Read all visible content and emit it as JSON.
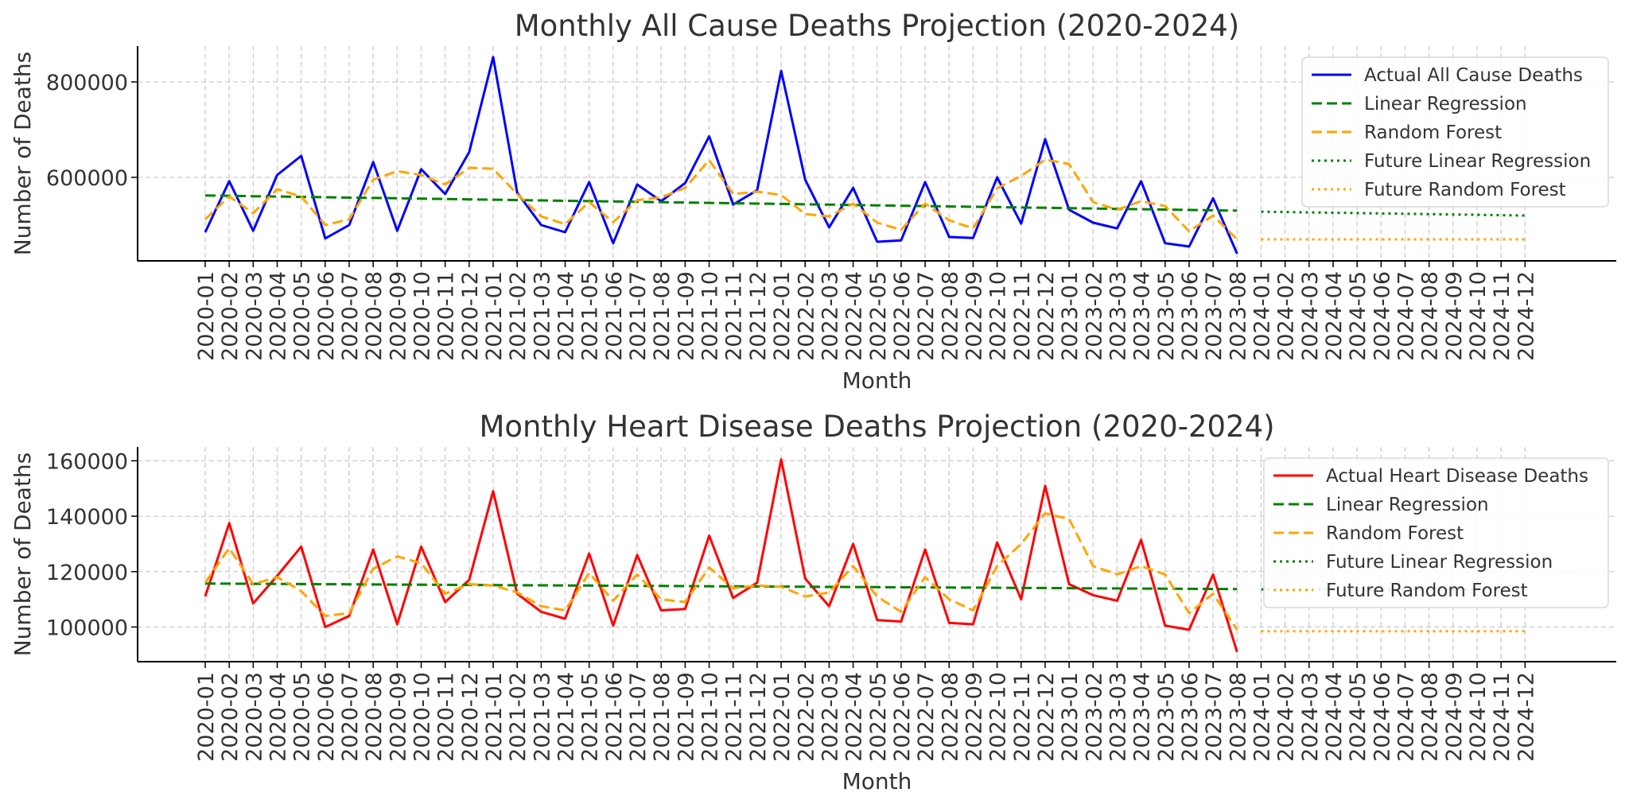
{
  "chart_data": [
    {
      "type": "line",
      "title": "Monthly All Cause Deaths Projection (2020-2024)",
      "xlabel": "Month",
      "ylabel": "Number of Deaths",
      "ylim": [
        425000,
        875000
      ],
      "yticks": [
        600000,
        800000
      ],
      "grid": true,
      "legend_position": "top-right",
      "x": [
        "2020-01",
        "2020-02",
        "2020-03",
        "2020-04",
        "2020-05",
        "2020-06",
        "2020-07",
        "2020-08",
        "2020-09",
        "2020-10",
        "2020-11",
        "2020-12",
        "2021-01",
        "2021-02",
        "2021-03",
        "2021-04",
        "2021-05",
        "2021-06",
        "2021-07",
        "2021-08",
        "2021-09",
        "2021-10",
        "2021-11",
        "2021-12",
        "2022-01",
        "2022-02",
        "2022-03",
        "2022-04",
        "2022-05",
        "2022-06",
        "2022-07",
        "2022-08",
        "2022-09",
        "2022-10",
        "2022-11",
        "2022-12",
        "2023-01",
        "2023-02",
        "2023-03",
        "2023-04",
        "2023-05",
        "2023-06",
        "2023-07",
        "2023-08",
        "2024-01",
        "2024-02",
        "2024-03",
        "2024-04",
        "2024-05",
        "2024-06",
        "2024-07",
        "2024-08",
        "2024-09",
        "2024-10",
        "2024-11",
        "2024-12"
      ],
      "series": [
        {
          "name": "Actual All Cause Deaths",
          "color": "#0000ff",
          "style": "solid",
          "values": [
            485000,
            592000,
            488000,
            605000,
            645000,
            472000,
            500000,
            632000,
            488000,
            617000,
            565000,
            653000,
            852000,
            568000,
            500000,
            485000,
            590000,
            462000,
            585000,
            550000,
            588000,
            686000,
            543000,
            573000,
            823000,
            595000,
            495000,
            578000,
            465000,
            468000,
            590000,
            475000,
            473000,
            600000,
            503000,
            680000,
            532000,
            505000,
            493000,
            592000,
            462000,
            455000,
            556000,
            440000,
            null,
            null,
            null,
            null,
            null,
            null,
            null,
            null,
            null,
            null,
            null,
            null
          ]
        },
        {
          "name": "Linear Regression",
          "color": "#008000",
          "style": "dashed",
          "values": [
            562000,
            561261,
            560521,
            559782,
            559043,
            558303,
            557564,
            556825,
            556085,
            555346,
            554607,
            553867,
            553128,
            552389,
            551649,
            550910,
            550171,
            549431,
            548692,
            547953,
            547213,
            546474,
            545735,
            544995,
            544256,
            543517,
            542777,
            542038,
            541299,
            540560,
            539820,
            539081,
            538342,
            537602,
            536863,
            536124,
            535384,
            534645,
            533906,
            533166,
            532427,
            531688,
            530948,
            530209,
            null,
            null,
            null,
            null,
            null,
            null,
            null,
            null,
            null,
            null,
            null,
            null
          ]
        },
        {
          "name": "Random Forest",
          "color": "#ffa500",
          "style": "dashed",
          "values": [
            512000,
            560000,
            525000,
            575000,
            560000,
            500000,
            512000,
            595000,
            613000,
            605000,
            585000,
            620000,
            618000,
            565000,
            518000,
            502000,
            548000,
            506000,
            552000,
            558000,
            578000,
            636000,
            565000,
            570000,
            563000,
            523000,
            518000,
            545000,
            505000,
            490000,
            545000,
            510000,
            493000,
            577000,
            603000,
            637000,
            628000,
            548000,
            532000,
            550000,
            540000,
            487000,
            520000,
            470000,
            null,
            null,
            null,
            null,
            null,
            null,
            null,
            null,
            null,
            null,
            null,
            null
          ]
        },
        {
          "name": "Future Linear Regression",
          "color": "#008000",
          "style": "dotted",
          "values": [
            null,
            null,
            null,
            null,
            null,
            null,
            null,
            null,
            null,
            null,
            null,
            null,
            null,
            null,
            null,
            null,
            null,
            null,
            null,
            null,
            null,
            null,
            null,
            null,
            null,
            null,
            null,
            null,
            null,
            null,
            null,
            null,
            null,
            null,
            null,
            null,
            null,
            null,
            null,
            null,
            null,
            null,
            null,
            null,
            528000,
            527273,
            526545,
            525818,
            525091,
            524364,
            523636,
            522909,
            522182,
            521455,
            520727,
            520000
          ]
        },
        {
          "name": "Future Random Forest",
          "color": "#ffa500",
          "style": "dotted",
          "values": [
            null,
            null,
            null,
            null,
            null,
            null,
            null,
            null,
            null,
            null,
            null,
            null,
            null,
            null,
            null,
            null,
            null,
            null,
            null,
            null,
            null,
            null,
            null,
            null,
            null,
            null,
            null,
            null,
            null,
            null,
            null,
            null,
            null,
            null,
            null,
            null,
            null,
            null,
            null,
            null,
            null,
            null,
            null,
            null,
            470000,
            470000,
            470000,
            470000,
            470000,
            470000,
            470000,
            470000,
            470000,
            470000,
            470000,
            470000
          ]
        }
      ]
    },
    {
      "type": "line",
      "title": "Monthly Heart Disease Deaths Projection (2020-2024)",
      "xlabel": "Month",
      "ylabel": "Number of Deaths",
      "ylim": [
        87500,
        165000
      ],
      "yticks": [
        100000,
        120000,
        140000,
        160000
      ],
      "grid": true,
      "legend_position": "top-right",
      "x": [
        "2020-01",
        "2020-02",
        "2020-03",
        "2020-04",
        "2020-05",
        "2020-06",
        "2020-07",
        "2020-08",
        "2020-09",
        "2020-10",
        "2020-11",
        "2020-12",
        "2021-01",
        "2021-02",
        "2021-03",
        "2021-04",
        "2021-05",
        "2021-06",
        "2021-07",
        "2021-08",
        "2021-09",
        "2021-10",
        "2021-11",
        "2021-12",
        "2022-01",
        "2022-02",
        "2022-03",
        "2022-04",
        "2022-05",
        "2022-06",
        "2022-07",
        "2022-08",
        "2022-09",
        "2022-10",
        "2022-11",
        "2022-12",
        "2023-01",
        "2023-02",
        "2023-03",
        "2023-04",
        "2023-05",
        "2023-06",
        "2023-07",
        "2023-08",
        "2024-01",
        "2024-02",
        "2024-03",
        "2024-04",
        "2024-05",
        "2024-06",
        "2024-07",
        "2024-08",
        "2024-09",
        "2024-10",
        "2024-11",
        "2024-12"
      ],
      "series": [
        {
          "name": "Actual Heart Disease Deaths",
          "color": "#ff0000",
          "style": "solid",
          "values": [
            111000,
            137500,
            108500,
            118500,
            129000,
            100000,
            104000,
            128000,
            101000,
            129000,
            109000,
            117000,
            149000,
            112000,
            105500,
            103000,
            126500,
            100500,
            126000,
            106000,
            106500,
            133000,
            110500,
            116000,
            160500,
            117500,
            107500,
            130000,
            102500,
            102000,
            128000,
            101500,
            101000,
            130500,
            110000,
            151000,
            115500,
            111500,
            109500,
            131500,
            100500,
            99000,
            119000,
            91000,
            null,
            null,
            null,
            null,
            null,
            null,
            null,
            null,
            null,
            null,
            null,
            null
          ]
        },
        {
          "name": "Linear Regression",
          "color": "#008000",
          "style": "dashed",
          "values": [
            115700,
            115653,
            115607,
            115560,
            115514,
            115467,
            115421,
            115374,
            115328,
            115281,
            115235,
            115188,
            115142,
            115095,
            115049,
            115002,
            114956,
            114909,
            114863,
            114816,
            114770,
            114723,
            114677,
            114630,
            114584,
            114537,
            114491,
            114444,
            114398,
            114351,
            114305,
            114258,
            114212,
            114165,
            114119,
            114072,
            114026,
            113979,
            113933,
            113886,
            113840,
            113793,
            113747,
            113700,
            null,
            null,
            null,
            null,
            null,
            null,
            null,
            null,
            null,
            null,
            null,
            null
          ]
        },
        {
          "name": "Random Forest",
          "color": "#ffa500",
          "style": "dashed",
          "values": [
            116000,
            128500,
            115500,
            118000,
            113000,
            104000,
            105000,
            121000,
            125500,
            123000,
            112000,
            115500,
            115000,
            112500,
            107500,
            106000,
            119500,
            109500,
            119000,
            110000,
            109000,
            121500,
            114000,
            115000,
            114500,
            111000,
            112500,
            122000,
            111000,
            105500,
            118000,
            110000,
            106000,
            122000,
            130000,
            141000,
            139000,
            122000,
            119000,
            122000,
            119000,
            105000,
            112000,
            99000,
            null,
            null,
            null,
            null,
            null,
            null,
            null,
            null,
            null,
            null,
            null,
            null
          ]
        },
        {
          "name": "Future Linear Regression",
          "color": "#008000",
          "style": "dotted",
          "values": [
            null,
            null,
            null,
            null,
            null,
            null,
            null,
            null,
            null,
            null,
            null,
            null,
            null,
            null,
            null,
            null,
            null,
            null,
            null,
            null,
            null,
            null,
            null,
            null,
            null,
            null,
            null,
            null,
            null,
            null,
            null,
            null,
            null,
            null,
            null,
            null,
            null,
            null,
            null,
            null,
            null,
            null,
            null,
            null,
            113600,
            113600,
            113600,
            113600,
            113600,
            113600,
            113600,
            113600,
            113600,
            113600,
            113600,
            113600
          ]
        },
        {
          "name": "Future Random Forest",
          "color": "#ffa500",
          "style": "dotted",
          "values": [
            null,
            null,
            null,
            null,
            null,
            null,
            null,
            null,
            null,
            null,
            null,
            null,
            null,
            null,
            null,
            null,
            null,
            null,
            null,
            null,
            null,
            null,
            null,
            null,
            null,
            null,
            null,
            null,
            null,
            null,
            null,
            null,
            null,
            null,
            null,
            null,
            null,
            null,
            null,
            null,
            null,
            null,
            null,
            null,
            98500,
            98500,
            98500,
            98500,
            98500,
            98500,
            98500,
            98500,
            98500,
            98500,
            98500,
            98500
          ]
        }
      ]
    }
  ]
}
